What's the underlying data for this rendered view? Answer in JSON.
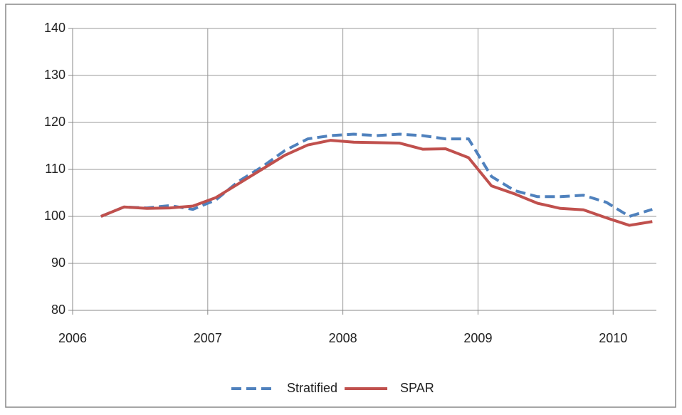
{
  "chart_data": {
    "type": "line",
    "x": [
      2006.21,
      2006.38,
      2006.55,
      2006.72,
      2006.89,
      2007.06,
      2007.23,
      2007.4,
      2007.57,
      2007.74,
      2007.91,
      2008.08,
      2008.25,
      2008.42,
      2008.59,
      2008.76,
      2008.93,
      2009.1,
      2009.27,
      2009.44,
      2009.61,
      2009.78,
      2009.95,
      2010.12,
      2010.29
    ],
    "series": [
      {
        "name": "Stratified",
        "color": "#4f81bd",
        "dash": true,
        "values": [
          100,
          102,
          101.8,
          102.3,
          101.5,
          103.5,
          107.5,
          110.5,
          114,
          116.5,
          117.2,
          117.5,
          117.2,
          117.5,
          117.2,
          116.5,
          116.5,
          108.5,
          105.5,
          104.2,
          104.2,
          104.5,
          103,
          100,
          101.5
        ]
      },
      {
        "name": "SPAR",
        "color": "#c0504d",
        "dash": false,
        "values": [
          100,
          102,
          101.7,
          101.8,
          102.2,
          104,
          107,
          110,
          113,
          115.2,
          116.2,
          115.8,
          115.7,
          115.6,
          114.3,
          114.4,
          112.5,
          106.5,
          104.8,
          102.8,
          101.7,
          101.4,
          99.7,
          98.1,
          98.9
        ]
      }
    ],
    "xlim": [
      2006,
      2010.32
    ],
    "xticks": [
      2006,
      2007,
      2008,
      2009,
      2010
    ],
    "ylim": [
      80,
      140
    ],
    "yticks": [
      80,
      90,
      100,
      110,
      120,
      130,
      140
    ],
    "grid": true,
    "legend": "bottom"
  }
}
